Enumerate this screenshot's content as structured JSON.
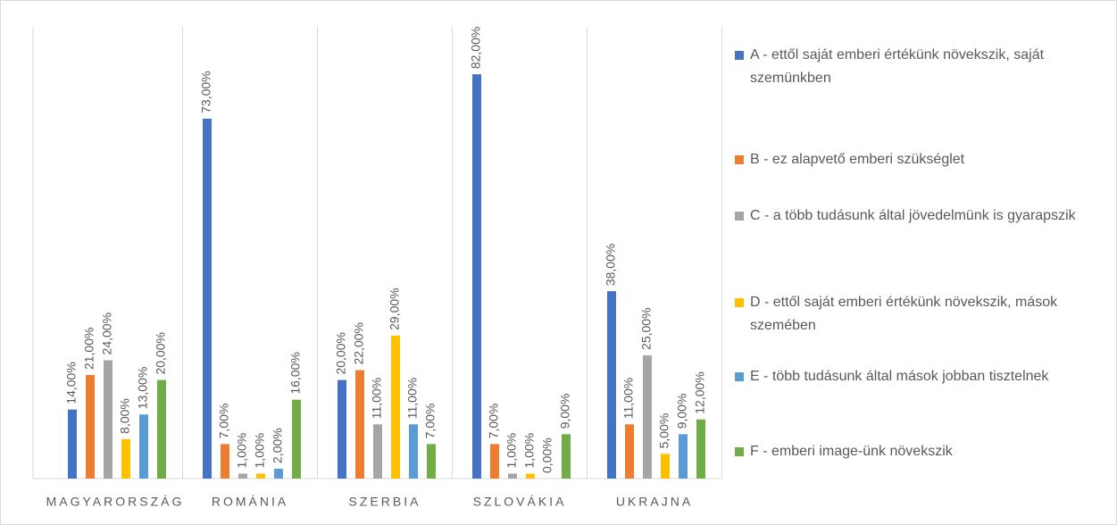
{
  "chart_data": {
    "type": "bar",
    "categories": [
      "MAGYARORSZÁG",
      "ROMÁNIA",
      "SZERBIA",
      "SZLOVÁKIA",
      "UKRAJNA"
    ],
    "series": [
      {
        "name": "A - ettől saját emberi értékünk növekszik, saját szemünkben",
        "color": "#4472c4",
        "values": [
          14,
          73,
          20,
          82,
          38
        ],
        "value_labels": [
          "14,00%",
          "73,00%",
          "20,00%",
          "82,00%",
          "38,00%"
        ]
      },
      {
        "name": "B - ez alapvető emberi szükséglet",
        "color": "#ed7d31",
        "values": [
          21,
          7,
          22,
          7,
          11
        ],
        "value_labels": [
          "21,00%",
          "7,00%",
          "22,00%",
          "7,00%",
          "11,00%"
        ]
      },
      {
        "name": "C - a több tudásunk által jövedelmünk is gyarapszik",
        "color": "#a5a5a5",
        "values": [
          24,
          1,
          11,
          1,
          25
        ],
        "value_labels": [
          "24,00%",
          "1,00%",
          "11,00%",
          "1,00%",
          "25,00%"
        ]
      },
      {
        "name": "D - ettől saját emberi értékünk növekszik, mások szemében",
        "color": "#ffc000",
        "values": [
          8,
          1,
          29,
          1,
          5
        ],
        "value_labels": [
          "8,00%",
          "1,00%",
          "29,00%",
          "1,00%",
          "5,00%"
        ]
      },
      {
        "name": "E - több tudásunk által mások jobban tisztelnek",
        "color": "#5b9bd5",
        "values": [
          13,
          2,
          11,
          0,
          9
        ],
        "value_labels": [
          "13,00%",
          "2,00%",
          "11,00%",
          "0,00%",
          "9,00%"
        ]
      },
      {
        "name": "F - emberi image-ünk növekszik",
        "color": "#70ad47",
        "values": [
          20,
          16,
          7,
          9,
          12
        ],
        "value_labels": [
          "20,00%",
          "16,00%",
          "7,00%",
          "9,00%",
          "12,00%"
        ]
      }
    ],
    "ylim": [
      0,
      90
    ],
    "grid": true,
    "legend": "right"
  }
}
